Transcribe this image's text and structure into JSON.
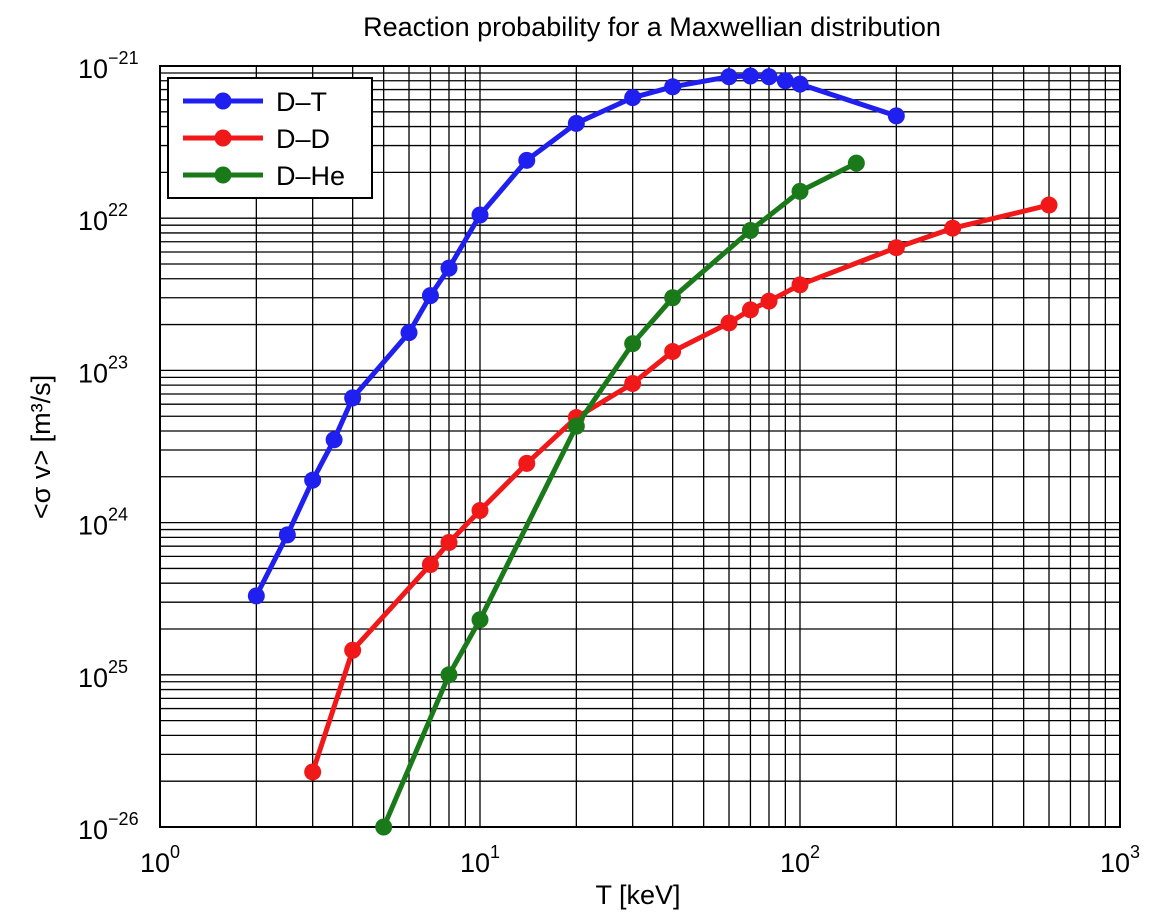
{
  "chart_data": {
    "type": "line",
    "title": "Reaction probability for a Maxwellian distribution",
    "xlabel": "T [keV]",
    "ylabel": "<σ v> [m³/s]",
    "x_scale": "log",
    "y_scale": "log",
    "xlim": [
      1,
      1000
    ],
    "ylim": [
      1e-26,
      1e-21
    ],
    "grid": true,
    "legend_position": "top-left",
    "x_ticks": [
      {
        "value": 1,
        "base": "10",
        "exp": "0"
      },
      {
        "value": 10,
        "base": "10",
        "exp": "1"
      },
      {
        "value": 100,
        "base": "10",
        "exp": "2"
      },
      {
        "value": 1000,
        "base": "10",
        "exp": "3"
      }
    ],
    "y_ticks": [
      {
        "value": 1e-21,
        "base": "10",
        "exp": "−21"
      },
      {
        "value": 1e-22,
        "base": "10",
        "exp": "22"
      },
      {
        "value": 1e-23,
        "base": "10",
        "exp": "23"
      },
      {
        "value": 1e-24,
        "base": "10",
        "exp": "24"
      },
      {
        "value": 1e-25,
        "base": "10",
        "exp": "25"
      },
      {
        "value": 1e-26,
        "base": "10",
        "exp": "−26"
      }
    ],
    "series": [
      {
        "name": "D–T",
        "color": "#1f1ff0",
        "x": [
          2,
          2.5,
          3,
          3.5,
          4,
          6,
          7,
          8,
          10,
          14,
          20,
          30,
          40,
          60,
          70,
          80,
          90,
          100,
          200
        ],
        "y": [
          3.3e-25,
          8.3e-25,
          1.9e-24,
          3.5e-24,
          6.6e-24,
          1.77e-23,
          3.1e-23,
          4.7e-23,
          1.05e-22,
          2.4e-22,
          4.2e-22,
          6.2e-22,
          7.3e-22,
          8.5e-22,
          8.6e-22,
          8.5e-22,
          8e-22,
          7.6e-22,
          4.7e-22
        ]
      },
      {
        "name": "D–D",
        "color": "#f01818",
        "x": [
          3,
          4,
          7,
          8,
          10,
          14,
          20,
          30,
          40,
          60,
          70,
          80,
          100,
          200,
          300,
          600
        ],
        "y": [
          2.3e-26,
          1.45e-25,
          5.3e-25,
          7.4e-25,
          1.2e-24,
          2.45e-24,
          4.9e-24,
          8.2e-24,
          1.33e-23,
          2.05e-23,
          2.5e-23,
          2.85e-23,
          3.65e-23,
          6.4e-23,
          8.6e-23,
          1.22e-22
        ]
      },
      {
        "name": "D–He",
        "color": "#1a7a1a",
        "x": [
          5,
          8,
          10,
          20,
          30,
          40,
          70,
          100,
          150
        ],
        "y": [
          1e-26,
          1e-25,
          2.3e-25,
          4.3e-24,
          1.5e-23,
          3e-23,
          8.3e-23,
          1.5e-22,
          2.3e-22
        ]
      }
    ]
  }
}
